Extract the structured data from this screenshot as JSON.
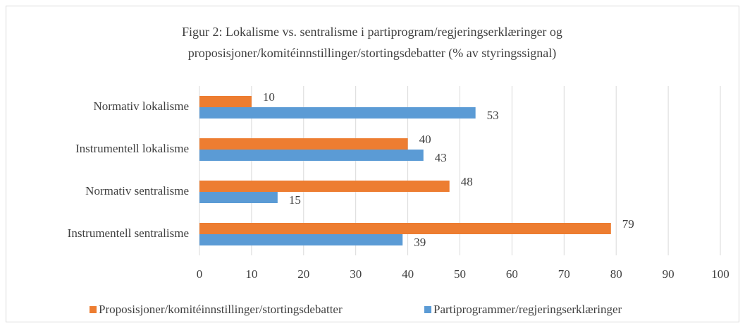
{
  "chart_data": {
    "type": "hbar",
    "title": [
      "Figur 2: Lokalisme vs. sentralisme i partiprogram/regjeringserklæringer og",
      "proposisjoner/komitéinnstillinger/stortingsdebatter  (% av styringssignal)"
    ],
    "categories": [
      "Normativ lokalisme",
      "Instrumentell lokalisme",
      "Normativ sentralisme",
      "Instrumentell sentralisme"
    ],
    "series": [
      {
        "name": "Proposisjoner/komitéinnstillinger/stortingsdebatter",
        "color": "#ED7D31",
        "values": [
          10,
          40,
          48,
          79
        ]
      },
      {
        "name": "Partiprogrammer/regjeringserklæringer",
        "color": "#5B9BD5",
        "values": [
          53,
          43,
          15,
          39
        ]
      }
    ],
    "xlim": [
      0,
      100
    ],
    "xticks": [
      0,
      10,
      20,
      30,
      40,
      50,
      60,
      70,
      80,
      90,
      100
    ],
    "grid": true,
    "legend": "bottom"
  }
}
